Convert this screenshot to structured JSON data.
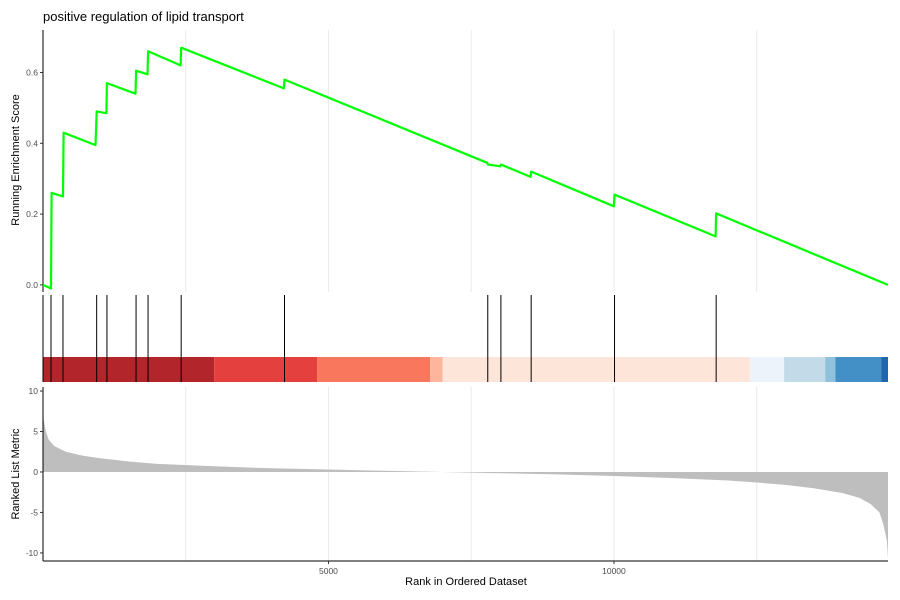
{
  "chart_data": {
    "type": "line",
    "title": "positive regulation of lipid transport",
    "xlabel": "Rank in Ordered Dataset",
    "xlim": [
      0,
      14800
    ],
    "x_ticks": [
      5000,
      10000
    ],
    "x_grid": [
      2500,
      5000,
      7500,
      10000,
      12500
    ],
    "grid": true,
    "top_panel": {
      "ylabel": "Running Enrichment Score",
      "ylim": [
        -0.02,
        0.72
      ],
      "y_ticks": [
        0.0,
        0.2,
        0.4,
        0.6
      ],
      "series": [
        {
          "color": "#00FF00",
          "x": [
            0,
            140,
            150,
            350,
            360,
            920,
            940,
            1110,
            1120,
            1620,
            1630,
            1830,
            1840,
            2410,
            2420,
            4220,
            4230,
            7780,
            7790,
            8010,
            8020,
            8540,
            8550,
            10000,
            10010,
            11780,
            11790,
            14800
          ],
          "y": [
            0.0,
            -0.01,
            0.26,
            0.25,
            0.43,
            0.395,
            0.49,
            0.485,
            0.57,
            0.54,
            0.605,
            0.595,
            0.66,
            0.62,
            0.67,
            0.555,
            0.58,
            0.345,
            0.34,
            0.335,
            0.34,
            0.305,
            0.32,
            0.222,
            0.255,
            0.137,
            0.202,
            0.0
          ]
        }
      ]
    },
    "hit_ranks": [
      140,
      350,
      940,
      1120,
      1630,
      1840,
      2420,
      4230,
      7790,
      8020,
      8550,
      10010,
      11790
    ],
    "color_bands": [
      {
        "from": 0,
        "to": 3000,
        "color": "#B2252B"
      },
      {
        "from": 3000,
        "to": 4800,
        "color": "#E3403E"
      },
      {
        "from": 4800,
        "to": 6780,
        "color": "#F9775C"
      },
      {
        "from": 6780,
        "to": 7000,
        "color": "#FDB59B"
      },
      {
        "from": 7000,
        "to": 12380,
        "color": "#FDE5DA"
      },
      {
        "from": 12380,
        "to": 12980,
        "color": "#EDF3FA"
      },
      {
        "from": 12980,
        "to": 13700,
        "color": "#C3DBE8"
      },
      {
        "from": 13700,
        "to": 13880,
        "color": "#8FC0DC"
      },
      {
        "from": 13880,
        "to": 14680,
        "color": "#4290C6"
      },
      {
        "from": 14680,
        "to": 14800,
        "color": "#2166AC"
      }
    ],
    "bottom_panel": {
      "ylabel": "Ranked List Metric",
      "ylim": [
        -11,
        10.5
      ],
      "y_ticks": [
        10,
        5,
        0,
        -5,
        -10
      ],
      "fill_color": "#BEBEBE",
      "metric_x": [
        0,
        20,
        50,
        100,
        200,
        400,
        700,
        1000,
        1500,
        2000,
        3000,
        4000,
        5000,
        6000,
        7000,
        8000,
        9000,
        10000,
        11000,
        12000,
        12500,
        13000,
        13500,
        14000,
        14300,
        14500,
        14650,
        14720,
        14780,
        14800
      ],
      "metric_y": [
        7.0,
        6.2,
        5.0,
        4.0,
        3.2,
        2.5,
        2.0,
        1.7,
        1.3,
        1.0,
        0.7,
        0.45,
        0.3,
        0.15,
        0.0,
        -0.15,
        -0.3,
        -0.5,
        -0.75,
        -1.05,
        -1.3,
        -1.6,
        -2.0,
        -2.6,
        -3.2,
        -4.0,
        -5.0,
        -6.5,
        -8.5,
        -10.7
      ]
    }
  }
}
